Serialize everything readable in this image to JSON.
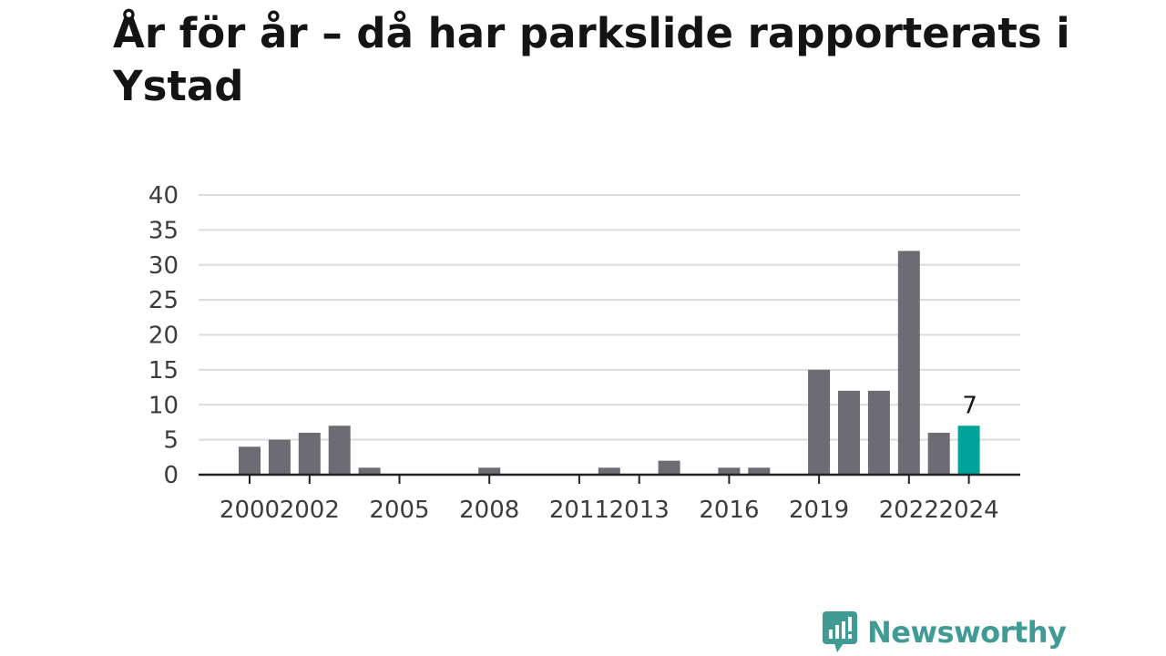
{
  "title": "År för år – då har parkslide rapporterats i Ystad",
  "brand": {
    "name": "Newsworthy",
    "icon": "newsworthy-logo-icon",
    "color": "#3f9b93"
  },
  "chart_data": {
    "type": "bar",
    "title": "År för år – då har parkslide rapporterats i Ystad",
    "xlabel": "",
    "ylabel": "",
    "ylim": [
      0,
      40
    ],
    "yticks": [
      0,
      5,
      10,
      15,
      20,
      25,
      30,
      35,
      40
    ],
    "categories": [
      2000,
      2001,
      2002,
      2003,
      2004,
      2005,
      2006,
      2007,
      2008,
      2009,
      2010,
      2011,
      2012,
      2013,
      2014,
      2015,
      2016,
      2017,
      2018,
      2019,
      2020,
      2021,
      2022,
      2023,
      2024
    ],
    "xtick_labels": [
      "2000",
      "2002",
      "2005",
      "2008",
      "2011",
      "2013",
      "2016",
      "2019",
      "2022",
      "2024"
    ],
    "values": [
      4,
      5,
      6,
      7,
      1,
      0,
      0,
      0,
      1,
      0,
      0,
      0,
      1,
      0,
      2,
      0,
      1,
      1,
      0,
      15,
      12,
      12,
      32,
      6,
      7
    ],
    "highlight": {
      "category": 2024,
      "label": "7",
      "color": "#00a39a"
    },
    "bar_color": "#6d6c72",
    "grid": true,
    "gridline_color": "#dcdcdc",
    "axis_color": "#222222"
  }
}
